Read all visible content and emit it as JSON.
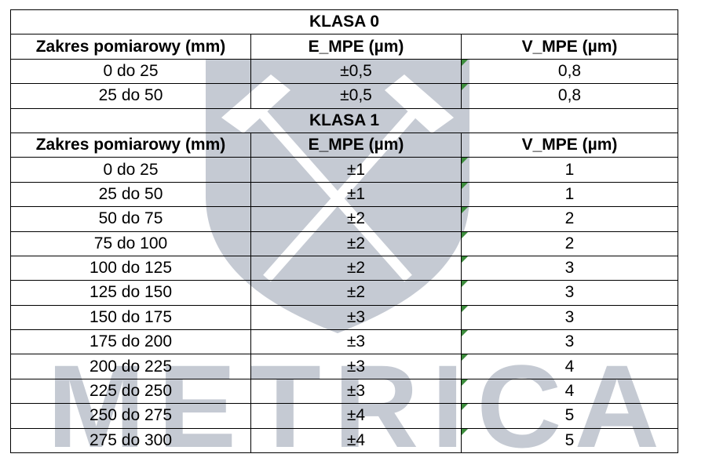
{
  "watermark": {
    "text": "METRICA",
    "color": "#c5cad3"
  },
  "table": {
    "sections": [
      {
        "title": "KLASA 0",
        "headers": [
          "Zakres pomiarowy (mm)",
          "E_MPE (µm)",
          "V_MPE (µm)"
        ],
        "rows": [
          [
            "0 do 25",
            "±0,5",
            "0,8"
          ],
          [
            "25 do 50",
            "±0,5",
            "0,8"
          ]
        ]
      },
      {
        "title": "KLASA 1",
        "headers": [
          "Zakres pomiarowy (mm)",
          "E_MPE (µm)",
          "V_MPE (µm)"
        ],
        "rows": [
          [
            "0 do 25",
            "±1",
            "1"
          ],
          [
            "25 do 50",
            "±1",
            "1"
          ],
          [
            "50 do 75",
            "±2",
            "2"
          ],
          [
            "75 do 100",
            "±2",
            "2"
          ],
          [
            "100 do 125",
            "±2",
            "3"
          ],
          [
            "125 do 150",
            "±2",
            "3"
          ],
          [
            "150 do 175",
            "±3",
            "3"
          ],
          [
            "175 do 200",
            "±3",
            "3"
          ],
          [
            "200 do 225",
            "±3",
            "4"
          ],
          [
            "225 do 250",
            "±3",
            "4"
          ],
          [
            "250 do 275",
            "±4",
            "5"
          ],
          [
            "275 do 300",
            "±4",
            "5"
          ]
        ]
      }
    ],
    "cell_marker_color": "#3c8c3c"
  }
}
